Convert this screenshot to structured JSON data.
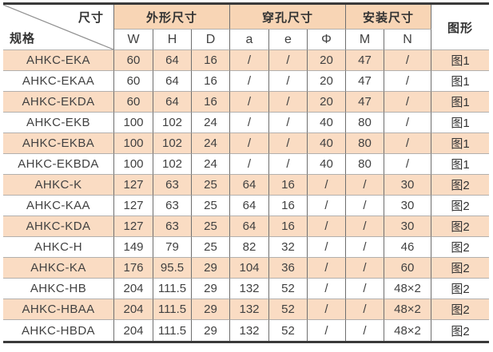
{
  "colors": {
    "row_highlight": "#fadcc3",
    "header_highlight": "#f8d5b5",
    "grid_vertical": "#6f6f6f",
    "grid_horizontal": "#b3b0ad",
    "outer_border": "#3a3a3a",
    "text": "#414141",
    "diagonal": "#8f8f8f"
  },
  "table": {
    "corner": {
      "top_label": "尺寸",
      "bottom_label": "规格"
    },
    "groups": [
      {
        "label": "外形尺寸",
        "colspan": 3
      },
      {
        "label": "穿孔尺寸",
        "colspan": 3
      },
      {
        "label": "安装尺寸",
        "colspan": 2
      }
    ],
    "figure_header": "图形",
    "subheaders": [
      "W",
      "H",
      "D",
      "a",
      "e",
      "Φ",
      "M",
      "N"
    ],
    "rows": [
      {
        "spec": "AHKC-EKA",
        "values": [
          "60",
          "64",
          "16",
          "/",
          "/",
          "20",
          "47",
          "/"
        ],
        "figure": "图1",
        "highlighted": true
      },
      {
        "spec": "AHKC-EKAA",
        "values": [
          "60",
          "64",
          "16",
          "/",
          "/",
          "20",
          "47",
          "/"
        ],
        "figure": "图1",
        "highlighted": false
      },
      {
        "spec": "AHKC-EKDA",
        "values": [
          "60",
          "64",
          "16",
          "/",
          "/",
          "20",
          "47",
          "/"
        ],
        "figure": "图1",
        "highlighted": true
      },
      {
        "spec": "AHKC-EKB",
        "values": [
          "100",
          "102",
          "24",
          "/",
          "/",
          "40",
          "80",
          "/"
        ],
        "figure": "图1",
        "highlighted": false
      },
      {
        "spec": "AHKC-EKBA",
        "values": [
          "100",
          "102",
          "24",
          "/",
          "/",
          "40",
          "80",
          "/"
        ],
        "figure": "图1",
        "highlighted": true
      },
      {
        "spec": "AHKC-EKBDA",
        "values": [
          "100",
          "102",
          "24",
          "/",
          "/",
          "40",
          "80",
          "/"
        ],
        "figure": "图1",
        "highlighted": false
      },
      {
        "spec": "AHKC-K",
        "values": [
          "127",
          "63",
          "25",
          "64",
          "16",
          "/",
          "/",
          "30"
        ],
        "figure": "图2",
        "highlighted": true
      },
      {
        "spec": "AHKC-KAA",
        "values": [
          "127",
          "63",
          "25",
          "64",
          "16",
          "/",
          "/",
          "30"
        ],
        "figure": "图2",
        "highlighted": false
      },
      {
        "spec": "AHKC-KDA",
        "values": [
          "127",
          "63",
          "25",
          "64",
          "16",
          "/",
          "/",
          "30"
        ],
        "figure": "图2",
        "highlighted": true
      },
      {
        "spec": "AHKC-H",
        "values": [
          "149",
          "79",
          "25",
          "82",
          "32",
          "/",
          "/",
          "46"
        ],
        "figure": "图2",
        "highlighted": false
      },
      {
        "spec": "AHKC-KA",
        "values": [
          "176",
          "95.5",
          "29",
          "104",
          "36",
          "/",
          "/",
          "60"
        ],
        "figure": "图2",
        "highlighted": true
      },
      {
        "spec": "AHKC-HB",
        "values": [
          "204",
          "111.5",
          "29",
          "132",
          "52",
          "/",
          "/",
          "48×2"
        ],
        "figure": "图2",
        "highlighted": false
      },
      {
        "spec": "AHKC-HBAA",
        "values": [
          "204",
          "111.5",
          "29",
          "132",
          "52",
          "/",
          "/",
          "48×2"
        ],
        "figure": "图2",
        "highlighted": true
      },
      {
        "spec": "AHKC-HBDA",
        "values": [
          "204",
          "111.5",
          "29",
          "132",
          "52",
          "/",
          "/",
          "48×2"
        ],
        "figure": "图2",
        "highlighted": false
      }
    ]
  }
}
